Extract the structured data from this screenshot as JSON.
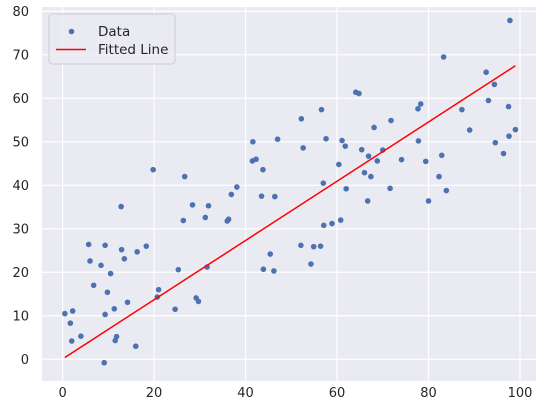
{
  "chart_data": {
    "type": "scatter",
    "title": "",
    "xlabel": "",
    "ylabel": "",
    "xlim": [
      -4.5,
      103.5
    ],
    "ylim": [
      -5,
      81
    ],
    "xticks": [
      0,
      20,
      40,
      60,
      80,
      100
    ],
    "yticks": [
      0,
      10,
      20,
      30,
      40,
      50,
      60,
      70,
      80
    ],
    "grid": true,
    "background": "#eaeaf2",
    "legend": {
      "placement": "top-left"
    },
    "series": [
      {
        "name": "Data",
        "kind": "scatter",
        "color": "#4c72b0",
        "points": [
          [
            0.5,
            10.5
          ],
          [
            1.7,
            8.3
          ],
          [
            2.0,
            4.2
          ],
          [
            2.2,
            11.1
          ],
          [
            4.0,
            5.3
          ],
          [
            5.7,
            26.4
          ],
          [
            6.0,
            22.6
          ],
          [
            6.8,
            17.0
          ],
          [
            8.4,
            21.6
          ],
          [
            9.1,
            -0.8
          ],
          [
            9.3,
            26.2
          ],
          [
            9.3,
            10.3
          ],
          [
            9.8,
            15.4
          ],
          [
            10.5,
            19.7
          ],
          [
            11.3,
            11.6
          ],
          [
            11.5,
            4.3
          ],
          [
            11.8,
            5.2
          ],
          [
            12.8,
            35.1
          ],
          [
            12.9,
            25.2
          ],
          [
            13.5,
            23.1
          ],
          [
            14.2,
            13.1
          ],
          [
            16.0,
            3.0
          ],
          [
            16.3,
            24.7
          ],
          [
            18.3,
            26.0
          ],
          [
            19.8,
            43.6
          ],
          [
            20.7,
            14.3
          ],
          [
            21.0,
            16.0
          ],
          [
            24.6,
            11.5
          ],
          [
            25.3,
            20.6
          ],
          [
            26.4,
            31.9
          ],
          [
            26.7,
            42.0
          ],
          [
            28.4,
            35.5
          ],
          [
            29.2,
            14.1
          ],
          [
            29.7,
            13.3
          ],
          [
            31.2,
            32.6
          ],
          [
            31.6,
            21.2
          ],
          [
            31.9,
            35.3
          ],
          [
            36.0,
            31.8
          ],
          [
            36.3,
            32.2
          ],
          [
            36.9,
            37.9
          ],
          [
            38.1,
            39.6
          ],
          [
            41.5,
            45.6
          ],
          [
            41.6,
            50.0
          ],
          [
            42.3,
            46.0
          ],
          [
            43.5,
            37.5
          ],
          [
            43.8,
            43.6
          ],
          [
            43.9,
            20.7
          ],
          [
            45.4,
            24.2
          ],
          [
            46.2,
            20.3
          ],
          [
            46.4,
            37.4
          ],
          [
            47.0,
            50.6
          ],
          [
            52.1,
            26.2
          ],
          [
            52.2,
            55.3
          ],
          [
            52.6,
            48.6
          ],
          [
            54.3,
            21.9
          ],
          [
            54.9,
            25.9
          ],
          [
            56.4,
            26.0
          ],
          [
            56.6,
            57.4
          ],
          [
            57.0,
            40.5
          ],
          [
            57.1,
            30.8
          ],
          [
            57.6,
            50.7
          ],
          [
            58.9,
            31.2
          ],
          [
            60.4,
            44.8
          ],
          [
            60.8,
            32.0
          ],
          [
            61.1,
            50.3
          ],
          [
            61.8,
            49.0
          ],
          [
            62.0,
            39.2
          ],
          [
            64.1,
            61.4
          ],
          [
            64.8,
            61.1
          ],
          [
            65.4,
            48.2
          ],
          [
            66.0,
            42.9
          ],
          [
            66.7,
            36.4
          ],
          [
            66.9,
            46.7
          ],
          [
            67.4,
            42.0
          ],
          [
            68.1,
            53.3
          ],
          [
            68.8,
            45.6
          ],
          [
            70.0,
            48.1
          ],
          [
            71.6,
            39.3
          ],
          [
            71.8,
            54.9
          ],
          [
            74.1,
            45.9
          ],
          [
            77.7,
            57.6
          ],
          [
            77.8,
            50.2
          ],
          [
            78.3,
            58.7
          ],
          [
            79.4,
            45.5
          ],
          [
            80.0,
            36.4
          ],
          [
            82.3,
            42.0
          ],
          [
            82.9,
            46.9
          ],
          [
            83.3,
            69.5
          ],
          [
            83.9,
            38.8
          ],
          [
            87.3,
            57.4
          ],
          [
            89.0,
            52.7
          ],
          [
            92.6,
            66.0
          ],
          [
            93.1,
            59.5
          ],
          [
            94.4,
            63.2
          ],
          [
            94.6,
            49.8
          ],
          [
            96.4,
            47.3
          ],
          [
            97.5,
            58.1
          ],
          [
            97.6,
            51.3
          ],
          [
            97.8,
            77.9
          ],
          [
            99.0,
            52.8
          ]
        ]
      },
      {
        "name": "Fitted Line",
        "kind": "line",
        "color": "#ff0000",
        "points": [
          [
            0.5,
            0.4
          ],
          [
            99.0,
            67.5
          ]
        ]
      }
    ]
  }
}
